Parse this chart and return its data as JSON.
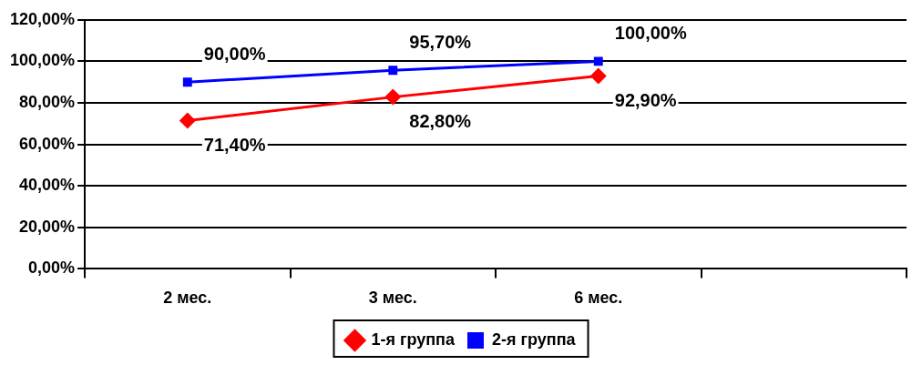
{
  "chart_data": {
    "type": "line",
    "categories": [
      "2 мес.",
      "3 мес.",
      "6 мес.",
      null
    ],
    "series": [
      {
        "name": "1-я группа",
        "color": "#ff0000",
        "marker": "diamond",
        "values": [
          71.4,
          82.8,
          92.9,
          null
        ],
        "value_labels": [
          "71,40%",
          "82,80%",
          "92,90%",
          null
        ]
      },
      {
        "name": "2-я группа",
        "color": "#0000ff",
        "marker": "square",
        "values": [
          90,
          95.7,
          100,
          null
        ],
        "value_labels": [
          "90,00%",
          "95,70%",
          "100,00%",
          null
        ]
      }
    ],
    "ylim": [
      0,
      120
    ],
    "yticks": [
      {
        "value": 0,
        "label": "0,00%"
      },
      {
        "value": 20,
        "label": "20,00%"
      },
      {
        "value": 40,
        "label": "40,00%"
      },
      {
        "value": 60,
        "label": "60,00%"
      },
      {
        "value": 80,
        "label": "80,00%"
      },
      {
        "value": 100,
        "label": "100,00%"
      },
      {
        "value": 120,
        "label": "120,00%"
      }
    ],
    "grid": "y",
    "legend": "bottom",
    "line_style": "solid"
  }
}
